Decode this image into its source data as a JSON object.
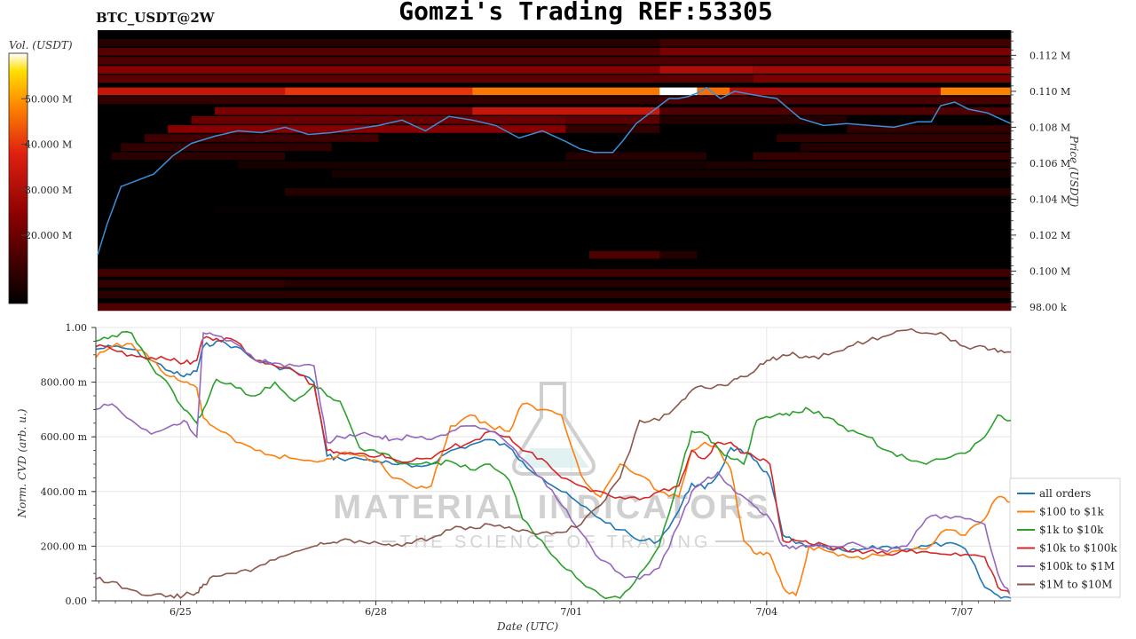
{
  "header": {
    "title": "Gomzi's Trading REF:53305",
    "pair": "BTC_USDT@2W"
  },
  "watermark": {
    "line1": "MATERIAL INDICATORS",
    "line2": "THE SCIENCE OF TRADING"
  },
  "colors": {
    "heatmap_low": "#000000",
    "heatmap_mid": "#cc1111",
    "heatmap_high": "#ffffff",
    "price_line": "#3a8fd8"
  },
  "chart_data": [
    {
      "type": "heatmap",
      "title": "",
      "colorbar_label": "Vol. (USDT)",
      "colorbar_ticks": [
        "20.000 M",
        "30.000 M",
        "40.000 M",
        "50.000 M"
      ],
      "colorbar_tick_values": [
        20,
        30,
        40,
        50
      ],
      "colorbar_range": [
        5,
        60
      ],
      "ylabel": "Price (USDT)",
      "y_ticks": [
        "98.00 k",
        "0.100 M",
        "0.102 M",
        "0.104 M",
        "0.106 M",
        "0.108 M",
        "0.110 M",
        "0.112 M"
      ],
      "y_tick_values": [
        98000,
        100000,
        102000,
        104000,
        106000,
        108000,
        110000,
        112000
      ],
      "ylim": [
        97800,
        113400
      ],
      "xlim": [
        0,
        19.5
      ],
      "price_series": {
        "name": "BTC price",
        "x": [
          0,
          0.2,
          0.5,
          0.8,
          1.2,
          1.6,
          2,
          2.5,
          3,
          3.5,
          4,
          4.5,
          5,
          5.5,
          6,
          6.5,
          7,
          7.5,
          8,
          8.5,
          9,
          9.5,
          10,
          10.3,
          10.6,
          11,
          11.2,
          11.5,
          12,
          12.2,
          12.4,
          12.6,
          12.8,
          13,
          13.3,
          13.6,
          14,
          14.5,
          15,
          15.5,
          16,
          16.5,
          17,
          17.5,
          17.8,
          18,
          18.3,
          18.6,
          19,
          19.5
        ],
        "y": [
          100900,
          102600,
          104700,
          105000,
          105400,
          106400,
          107100,
          107500,
          107800,
          107700,
          108000,
          107600,
          107700,
          107900,
          108100,
          108400,
          107800,
          108600,
          108400,
          108100,
          107400,
          107800,
          107200,
          106800,
          106600,
          106600,
          107200,
          108200,
          109200,
          109600,
          109600,
          109700,
          109900,
          110200,
          109600,
          110000,
          109800,
          109600,
          108500,
          108100,
          108200,
          108100,
          108000,
          108300,
          108300,
          109200,
          109400,
          109000,
          108800,
          108200
        ]
      },
      "bands": [
        {
          "price": 112700,
          "ranges": [
            [
              0,
              12,
              10
            ],
            [
              12,
              19.5,
              14
            ]
          ]
        },
        {
          "price": 112200,
          "ranges": [
            [
              0,
              12,
              17
            ],
            [
              12,
              19.5,
              22
            ]
          ]
        },
        {
          "price": 111700,
          "ranges": [
            [
              0,
              19.5,
              16
            ]
          ]
        },
        {
          "price": 111200,
          "ranges": [
            [
              0,
              12,
              24
            ],
            [
              12,
              14,
              30
            ],
            [
              14,
              19.5,
              28
            ]
          ]
        },
        {
          "price": 110700,
          "ranges": [
            [
              0,
              14,
              18
            ],
            [
              14,
              19.5,
              22
            ]
          ]
        },
        {
          "price": 110000,
          "ranges": [
            [
              0,
              4,
              34
            ],
            [
              4,
              8,
              40
            ],
            [
              8,
              12,
              47
            ],
            [
              12,
              12.8,
              60
            ],
            [
              12.8,
              13.5,
              46
            ],
            [
              13.5,
              18,
              30
            ],
            [
              18,
              19.5,
              48
            ]
          ]
        },
        {
          "price": 109500,
          "ranges": [
            [
              0,
              12,
              12
            ],
            [
              12,
              19.5,
              15
            ]
          ]
        },
        {
          "price": 108900,
          "ranges": [
            [
              2.5,
              8,
              22
            ],
            [
              8,
              12,
              34
            ],
            [
              12,
              19.5,
              16
            ]
          ]
        },
        {
          "price": 108400,
          "ranges": [
            [
              2,
              10,
              20
            ],
            [
              10,
              12,
              18
            ],
            [
              12,
              16,
              10
            ]
          ]
        },
        {
          "price": 107900,
          "ranges": [
            [
              1.5,
              10,
              24
            ],
            [
              10,
              12,
              12
            ],
            [
              16,
              19.5,
              12
            ]
          ]
        },
        {
          "price": 107400,
          "ranges": [
            [
              1,
              6,
              14
            ],
            [
              14.5,
              19.5,
              12
            ]
          ]
        },
        {
          "price": 106900,
          "ranges": [
            [
              0.5,
              5,
              12
            ],
            [
              15,
              19.5,
              10
            ]
          ]
        },
        {
          "price": 106400,
          "ranges": [
            [
              0.3,
              4,
              11
            ],
            [
              10,
              13,
              10
            ],
            [
              14,
              19.5,
              12
            ]
          ]
        },
        {
          "price": 105900,
          "ranges": [
            [
              3,
              13,
              8
            ],
            [
              13,
              19.5,
              9
            ]
          ]
        },
        {
          "price": 105400,
          "ranges": [
            [
              5,
              19.5,
              8
            ]
          ]
        },
        {
          "price": 104400,
          "ranges": [
            [
              4,
              19.5,
              10
            ]
          ]
        },
        {
          "price": 103400,
          "ranges": [
            [
              2.5,
              19.5,
              6
            ]
          ]
        },
        {
          "price": 100900,
          "ranges": [
            [
              10.5,
              12,
              16
            ],
            [
              12,
              12.8,
              10
            ]
          ]
        },
        {
          "price": 99900,
          "ranges": [
            [
              0,
              19.5,
              14
            ]
          ]
        },
        {
          "price": 99300,
          "ranges": [
            [
              0,
              4,
              12
            ],
            [
              4,
              19.5,
              10
            ]
          ]
        },
        {
          "price": 98700,
          "ranges": [
            [
              0,
              19.5,
              11
            ]
          ]
        },
        {
          "price": 98000,
          "ranges": [
            [
              0,
              19.5,
              16
            ]
          ]
        }
      ]
    },
    {
      "type": "line",
      "title": "",
      "xlabel": "Date (UTC)",
      "ylabel": "Norm. CVD (arb. u.)",
      "x_ticks": [
        "6/25",
        "6/28",
        "7/01",
        "7/04",
        "7/07"
      ],
      "x_tick_values": [
        1.75,
        4.75,
        7.75,
        10.75,
        13.75
      ],
      "xlim": [
        0.45,
        14.5
      ],
      "y_ticks": [
        "0.00",
        "200.00 m",
        "400.00 m",
        "600.00 m",
        "800.00 m",
        "1.00"
      ],
      "y_tick_values": [
        0,
        0.2,
        0.4,
        0.6,
        0.8,
        1.0
      ],
      "ylim": [
        0,
        1.0
      ],
      "grid": true,
      "legend_position": "right",
      "x": [
        0.45,
        0.7,
        1.0,
        1.3,
        1.6,
        1.8,
        2.0,
        2.1,
        2.3,
        2.6,
        2.9,
        3.2,
        3.5,
        3.8,
        4.0,
        4.2,
        4.5,
        4.8,
        5.0,
        5.3,
        5.6,
        5.9,
        6.2,
        6.5,
        6.8,
        7.0,
        7.3,
        7.6,
        7.9,
        8.2,
        8.5,
        8.8,
        9.1,
        9.4,
        9.6,
        9.8,
        10.0,
        10.2,
        10.4,
        10.6,
        10.8,
        11.0,
        11.2,
        11.4,
        11.7,
        12.0,
        12.3,
        12.6,
        12.9,
        13.2,
        13.5,
        13.8,
        14.1,
        14.3,
        14.5
      ],
      "series": [
        {
          "name": "all orders",
          "color": "#1f77b4",
          "values": [
            0.92,
            0.93,
            0.92,
            0.88,
            0.84,
            0.82,
            0.84,
            0.93,
            0.95,
            0.93,
            0.88,
            0.86,
            0.84,
            0.8,
            0.53,
            0.52,
            0.52,
            0.51,
            0.5,
            0.49,
            0.5,
            0.55,
            0.57,
            0.59,
            0.56,
            0.51,
            0.45,
            0.4,
            0.35,
            0.3,
            0.26,
            0.22,
            0.22,
            0.33,
            0.43,
            0.41,
            0.46,
            0.56,
            0.54,
            0.51,
            0.45,
            0.24,
            0.21,
            0.2,
            0.19,
            0.18,
            0.19,
            0.2,
            0.19,
            0.2,
            0.21,
            0.19,
            0.05,
            0.02,
            0.01
          ]
        },
        {
          "name": "$100 to $1k",
          "color": "#ff7f0e",
          "values": [
            0.89,
            0.93,
            0.94,
            0.88,
            0.82,
            0.8,
            0.78,
            0.67,
            0.63,
            0.58,
            0.55,
            0.53,
            0.52,
            0.51,
            0.52,
            0.54,
            0.53,
            0.51,
            0.45,
            0.42,
            0.42,
            0.64,
            0.68,
            0.64,
            0.62,
            0.72,
            0.7,
            0.68,
            0.46,
            0.38,
            0.5,
            0.46,
            0.4,
            0.38,
            0.55,
            0.58,
            0.56,
            0.48,
            0.22,
            0.17,
            0.17,
            0.05,
            0.02,
            0.2,
            0.18,
            0.16,
            0.16,
            0.17,
            0.18,
            0.19,
            0.26,
            0.24,
            0.3,
            0.38,
            0.36
          ]
        },
        {
          "name": "$1k to $10k",
          "color": "#2ca02c",
          "values": [
            0.95,
            0.97,
            0.98,
            0.86,
            0.78,
            0.7,
            0.65,
            0.7,
            0.81,
            0.78,
            0.75,
            0.8,
            0.73,
            0.79,
            0.75,
            0.73,
            0.56,
            0.54,
            0.52,
            0.5,
            0.5,
            0.51,
            0.48,
            0.5,
            0.44,
            0.3,
            0.22,
            0.13,
            0.07,
            0.02,
            0.01,
            0.1,
            0.2,
            0.45,
            0.62,
            0.61,
            0.56,
            0.52,
            0.5,
            0.66,
            0.67,
            0.68,
            0.69,
            0.7,
            0.67,
            0.62,
            0.6,
            0.55,
            0.52,
            0.5,
            0.52,
            0.54,
            0.6,
            0.68,
            0.66
          ]
        },
        {
          "name": "$10k to $100k",
          "color": "#d62728",
          "values": [
            0.93,
            0.92,
            0.9,
            0.89,
            0.88,
            0.87,
            0.88,
            0.96,
            0.96,
            0.95,
            0.88,
            0.86,
            0.84,
            0.79,
            0.55,
            0.54,
            0.54,
            0.53,
            0.52,
            0.51,
            0.52,
            0.56,
            0.58,
            0.62,
            0.6,
            0.55,
            0.52,
            0.45,
            0.42,
            0.4,
            0.38,
            0.37,
            0.4,
            0.42,
            0.55,
            0.52,
            0.58,
            0.58,
            0.54,
            0.52,
            0.5,
            0.22,
            0.22,
            0.21,
            0.2,
            0.18,
            0.18,
            0.17,
            0.18,
            0.18,
            0.17,
            0.17,
            0.16,
            0.05,
            0.02
          ]
        },
        {
          "name": "$100k to $1M",
          "color": "#9467bd",
          "values": [
            0.7,
            0.72,
            0.66,
            0.61,
            0.64,
            0.66,
            0.6,
            0.98,
            0.97,
            0.94,
            0.88,
            0.87,
            0.86,
            0.86,
            0.58,
            0.6,
            0.61,
            0.6,
            0.59,
            0.6,
            0.59,
            0.62,
            0.64,
            0.62,
            0.57,
            0.52,
            0.45,
            0.35,
            0.25,
            0.15,
            0.1,
            0.08,
            0.12,
            0.28,
            0.4,
            0.44,
            0.47,
            0.42,
            0.38,
            0.34,
            0.3,
            0.2,
            0.19,
            0.2,
            0.2,
            0.21,
            0.19,
            0.18,
            0.2,
            0.3,
            0.31,
            0.3,
            0.28,
            0.1,
            0.02
          ]
        },
        {
          "name": "$1M to $10M",
          "color": "#8c564b",
          "values": [
            0.08,
            0.07,
            0.04,
            0.02,
            0.02,
            0.02,
            0.03,
            0.06,
            0.09,
            0.1,
            0.12,
            0.15,
            0.18,
            0.2,
            0.21,
            0.22,
            0.22,
            0.21,
            0.2,
            0.21,
            0.23,
            0.26,
            0.27,
            0.28,
            0.27,
            0.26,
            0.25,
            0.25,
            0.28,
            0.35,
            0.45,
            0.66,
            0.66,
            0.72,
            0.77,
            0.78,
            0.79,
            0.8,
            0.82,
            0.85,
            0.88,
            0.9,
            0.9,
            0.89,
            0.9,
            0.93,
            0.95,
            0.97,
            0.99,
            0.98,
            0.97,
            0.93,
            0.93,
            0.91,
            0.91
          ]
        }
      ]
    }
  ]
}
